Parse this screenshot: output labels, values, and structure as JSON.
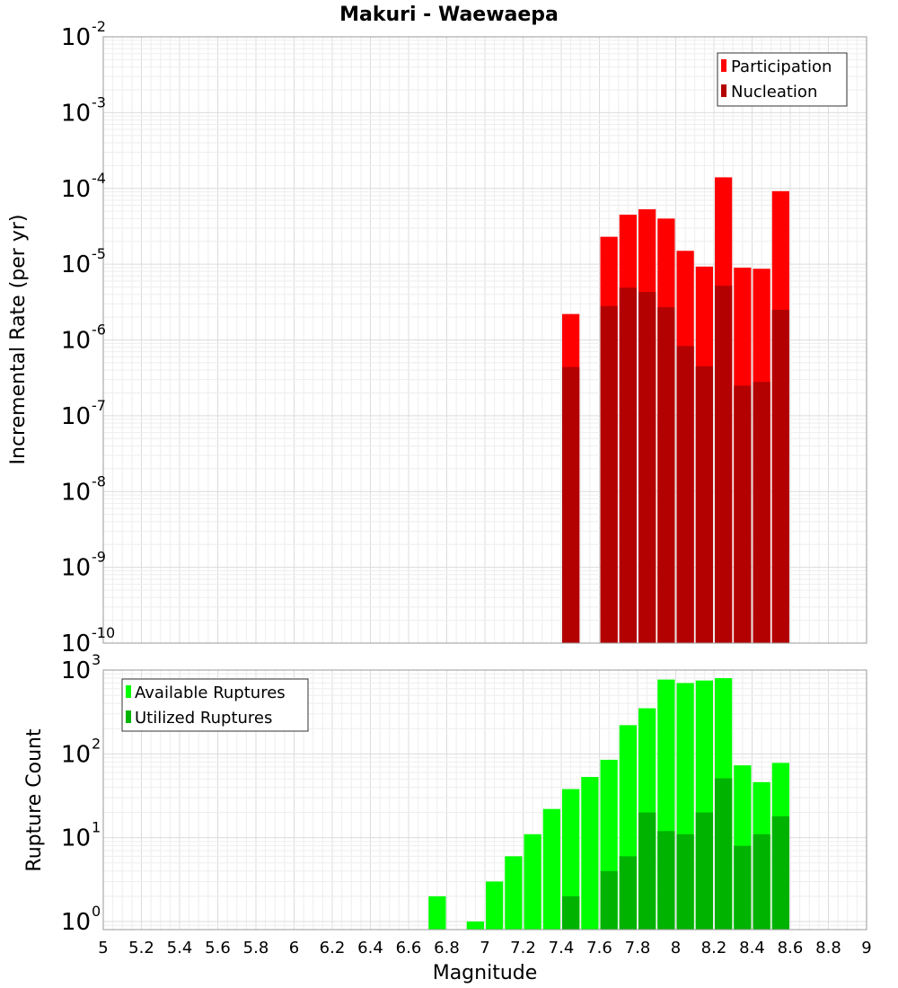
{
  "chart_data": [
    {
      "type": "bar",
      "panel": "top",
      "title": "Makuri - Waewaepa",
      "xlabel": "",
      "ylabel": "Incremental Rate (per yr)",
      "yscale": "log",
      "xlim": [
        5,
        9
      ],
      "ylim_exp": [
        -10,
        -2
      ],
      "ytick_exponents": [
        "-10",
        "-9",
        "-8",
        "-7",
        "-6",
        "-5",
        "-4",
        "-3",
        "-2"
      ],
      "bar_width": 0.1,
      "legend_position": "top-right",
      "series": [
        {
          "name": "Participation",
          "color": "#ff0000",
          "x": [
            7.45,
            7.65,
            7.75,
            7.85,
            7.95,
            8.05,
            8.15,
            8.25,
            8.35,
            8.45,
            8.55
          ],
          "values": [
            2.2e-06,
            2.3e-05,
            4.5e-05,
            5.3e-05,
            4e-05,
            1.5e-05,
            9.3e-06,
            0.00014,
            9e-06,
            8.7e-06,
            9.2e-05
          ]
        },
        {
          "name": "Nucleation",
          "color": "#b30000",
          "x": [
            7.45,
            7.65,
            7.75,
            7.85,
            7.95,
            8.05,
            8.15,
            8.25,
            8.35,
            8.45,
            8.55
          ],
          "values": [
            4.4e-07,
            2.8e-06,
            4.9e-06,
            4.3e-06,
            2.7e-06,
            8.3e-07,
            4.5e-07,
            5.2e-06,
            2.5e-07,
            2.8e-07,
            2.5e-06
          ]
        }
      ]
    },
    {
      "type": "bar",
      "panel": "bottom",
      "title": "",
      "xlabel": "Magnitude",
      "ylabel": "Rupture Count",
      "yscale": "log",
      "xlim": [
        5,
        9
      ],
      "ylim": [
        0.8,
        1000
      ],
      "ytick_exponents": [
        "0",
        "1",
        "2",
        "3"
      ],
      "xtick_labels": [
        "5",
        "5.2",
        "5.4",
        "5.6",
        "5.8",
        "6",
        "6.2",
        "6.4",
        "6.6",
        "6.8",
        "7",
        "7.2",
        "7.4",
        "7.6",
        "7.8",
        "8",
        "8.2",
        "8.4",
        "8.6",
        "8.8",
        "9"
      ],
      "bar_width": 0.1,
      "legend_position": "top-left",
      "series": [
        {
          "name": "Available Ruptures",
          "color": "#00ff00",
          "x": [
            6.75,
            6.95,
            7.05,
            7.15,
            7.25,
            7.35,
            7.45,
            7.55,
            7.65,
            7.75,
            7.85,
            7.95,
            8.05,
            8.15,
            8.25,
            8.35,
            8.45,
            8.55
          ],
          "values": [
            2,
            1,
            3,
            6,
            11,
            22,
            38,
            53,
            85,
            220,
            350,
            770,
            700,
            750,
            800,
            73,
            46,
            78
          ]
        },
        {
          "name": "Utilized Ruptures",
          "color": "#00b300",
          "x": [
            7.45,
            7.65,
            7.75,
            7.85,
            7.95,
            8.05,
            8.15,
            8.25,
            8.35,
            8.45,
            8.55
          ],
          "values": [
            2,
            4,
            6,
            20,
            12,
            11,
            20,
            51,
            8,
            11,
            18
          ]
        }
      ]
    }
  ]
}
